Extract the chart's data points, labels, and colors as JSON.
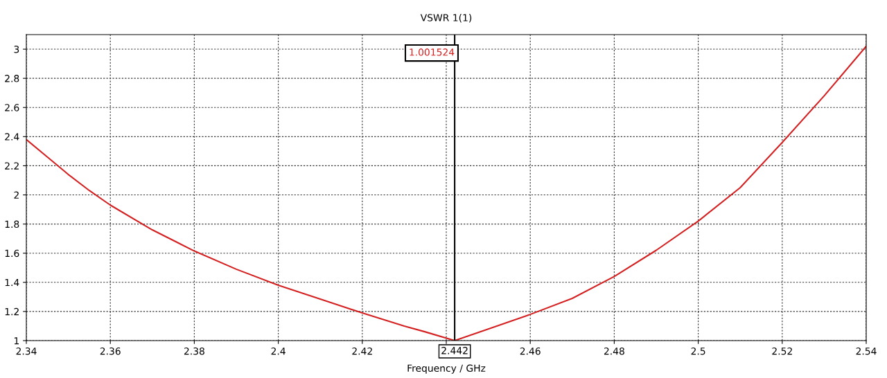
{
  "chart_data": {
    "type": "line",
    "title": "VSWR 1(1)",
    "xlabel": "Frequency / GHz",
    "x": [
      2.34,
      2.345,
      2.35,
      2.355,
      2.36,
      2.37,
      2.38,
      2.39,
      2.4,
      2.41,
      2.42,
      2.43,
      2.435,
      2.442,
      2.45,
      2.46,
      2.47,
      2.48,
      2.49,
      2.5,
      2.51,
      2.52,
      2.53,
      2.54
    ],
    "series": [
      {
        "color": "#d42020",
        "values": [
          2.38,
          2.26,
          2.14,
          2.03,
          1.93,
          1.76,
          1.615,
          1.49,
          1.38,
          1.285,
          1.19,
          1.1,
          1.06,
          1.0,
          1.08,
          1.18,
          1.29,
          1.44,
          1.62,
          1.82,
          2.05,
          2.36,
          2.68,
          3.02
        ]
      }
    ],
    "xlim": [
      2.34,
      2.54
    ],
    "ylim": [
      1,
      3.1
    ],
    "xticks": [
      2.34,
      2.36,
      2.38,
      2.4,
      2.42,
      {
        "value": 2.44,
        "label": null
      },
      2.46,
      2.48,
      2.5,
      2.52,
      2.54
    ],
    "yticks": [
      1,
      1.2,
      1.4,
      1.6,
      1.8,
      2,
      2.2,
      2.4,
      2.6,
      2.8,
      3
    ],
    "ref_lines": [
      {
        "axis": "x",
        "value": 2.442,
        "label": "2.442",
        "color": "#000000"
      }
    ],
    "annotations": [
      "1.001524"
    ],
    "grid": true,
    "line_style": "solid",
    "marker": "none"
  }
}
